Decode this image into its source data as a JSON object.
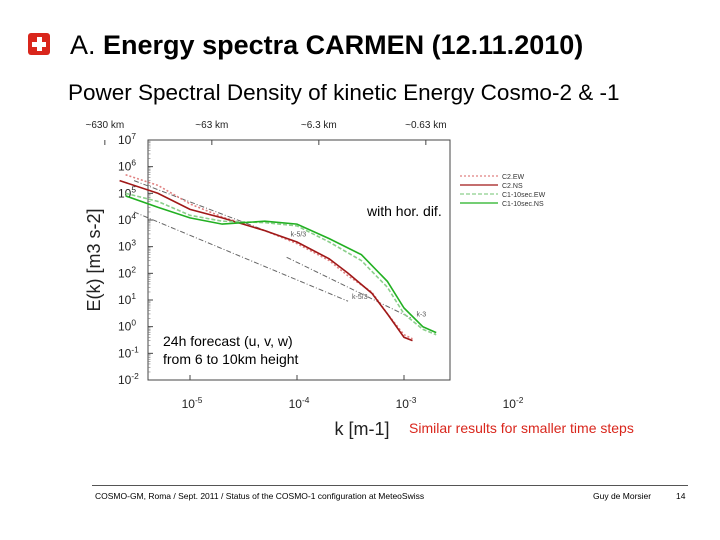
{
  "slide": {
    "title_prefix": "A.",
    "title_main": "Energy spectra CARMEN (12.11.2010)",
    "logo": "swiss-cross-icon",
    "accent_color": "#d9261c"
  },
  "chart_data": {
    "type": "line",
    "title": "Power Spectral Density of kinetic Energy Cosmo-2 & -1",
    "xlabel": "k [m-1]",
    "ylabel": "E(k) [m3 s-2]",
    "x_scale": "log",
    "y_scale": "log",
    "xlim": [
      1e-06,
      0.01
    ],
    "ylim": [
      0.01,
      10000000
    ],
    "x_ticks": [
      {
        "base": "10",
        "exp": "-5",
        "value": 1e-05
      },
      {
        "base": "10",
        "exp": "-4",
        "value": 0.0001
      },
      {
        "base": "10",
        "exp": "-3",
        "value": 0.001
      },
      {
        "base": "10",
        "exp": "-2",
        "value": 0.01
      }
    ],
    "y_ticks": [
      {
        "base": "10",
        "exp": "7",
        "value": 10000000
      },
      {
        "base": "10",
        "exp": "6",
        "value": 1000000
      },
      {
        "base": "10",
        "exp": "5",
        "value": 100000
      },
      {
        "base": "10",
        "exp": "4",
        "value": 10000
      },
      {
        "base": "10",
        "exp": "3",
        "value": 1000
      },
      {
        "base": "10",
        "exp": "2",
        "value": 100
      },
      {
        "base": "10",
        "exp": "1",
        "value": 10
      },
      {
        "base": "10",
        "exp": "0",
        "value": 1
      },
      {
        "base": "10",
        "exp": "-1",
        "value": 0.1
      },
      {
        "base": "10",
        "exp": "-2",
        "value": 0.01
      }
    ],
    "top_axis_labels": [
      {
        "text": "~630 km",
        "value": 1.6e-06
      },
      {
        "text": "~63 km",
        "value": 1.6e-05
      },
      {
        "text": "~6.3 km",
        "value": 0.00016
      },
      {
        "text": "~0.63 km",
        "value": 0.0016
      }
    ],
    "legend_position": "top-right",
    "series": [
      {
        "name": "C2.EW",
        "color": "#e08080",
        "dash": "2,2",
        "x": [
          2.5e-06,
          5e-06,
          1e-05,
          2e-05,
          5e-05,
          0.0001,
          0.0002,
          0.0003,
          0.0005,
          0.0007,
          0.001,
          0.0012
        ],
        "y": [
          500000,
          200000,
          40000,
          13000,
          4000,
          1300,
          300,
          80,
          20,
          3,
          0.5,
          0.35
        ]
      },
      {
        "name": "C2.NS",
        "color": "#a01818",
        "dash": "",
        "x": [
          2.2e-06,
          5e-06,
          1e-05,
          2e-05,
          5e-05,
          0.0001,
          0.0002,
          0.0003,
          0.0005,
          0.0007,
          0.001,
          0.0012
        ],
        "y": [
          300000,
          100000,
          25000,
          12000,
          4000,
          1500,
          350,
          100,
          18,
          3,
          0.4,
          0.3
        ]
      },
      {
        "name": "C1-10sec.EW",
        "color": "#8ccf8c",
        "dash": "4,2",
        "x": [
          2.5e-06,
          5e-06,
          1e-05,
          2e-05,
          5e-05,
          0.0001,
          0.0002,
          0.0004,
          0.0007,
          0.001,
          0.0015,
          0.002
        ],
        "y": [
          100000,
          50000,
          15000,
          9000,
          8000,
          6000,
          1500,
          300,
          30,
          3,
          0.8,
          0.5
        ]
      },
      {
        "name": "C1-10sec.NS",
        "color": "#22b022",
        "dash": "",
        "x": [
          2.5e-06,
          5e-06,
          1e-05,
          2e-05,
          5e-05,
          0.0001,
          0.0002,
          0.0004,
          0.0007,
          0.001,
          0.0015,
          0.002
        ],
        "y": [
          80000,
          30000,
          12000,
          7000,
          9000,
          7000,
          2000,
          500,
          50,
          5,
          1,
          0.6
        ]
      }
    ],
    "reference_lines": [
      {
        "label": "k-5/3",
        "x": [
          3e-06,
          8e-05
        ],
        "y": [
          300000,
          2000
        ]
      },
      {
        "label": "k-3",
        "x": [
          8e-05,
          0.0012
        ],
        "y": [
          400,
          2
        ]
      },
      {
        "label": "k-5/3",
        "x": [
          3e-06,
          0.0003
        ],
        "y": [
          20000,
          9
        ]
      }
    ],
    "annotations": {
      "with_hor_dif": "with hor. dif.",
      "forecast_line1": "24h forecast (u, v, w)",
      "forecast_line2": "from 6 to 10km height",
      "similar_results": "Similar results for smaller time steps"
    }
  },
  "footer": {
    "left": "COSMO-GM, Roma / Sept. 2011 / Status of the COSMO-1 configuration at MeteoSwiss",
    "author": "Guy de Morsier",
    "page": "14"
  }
}
